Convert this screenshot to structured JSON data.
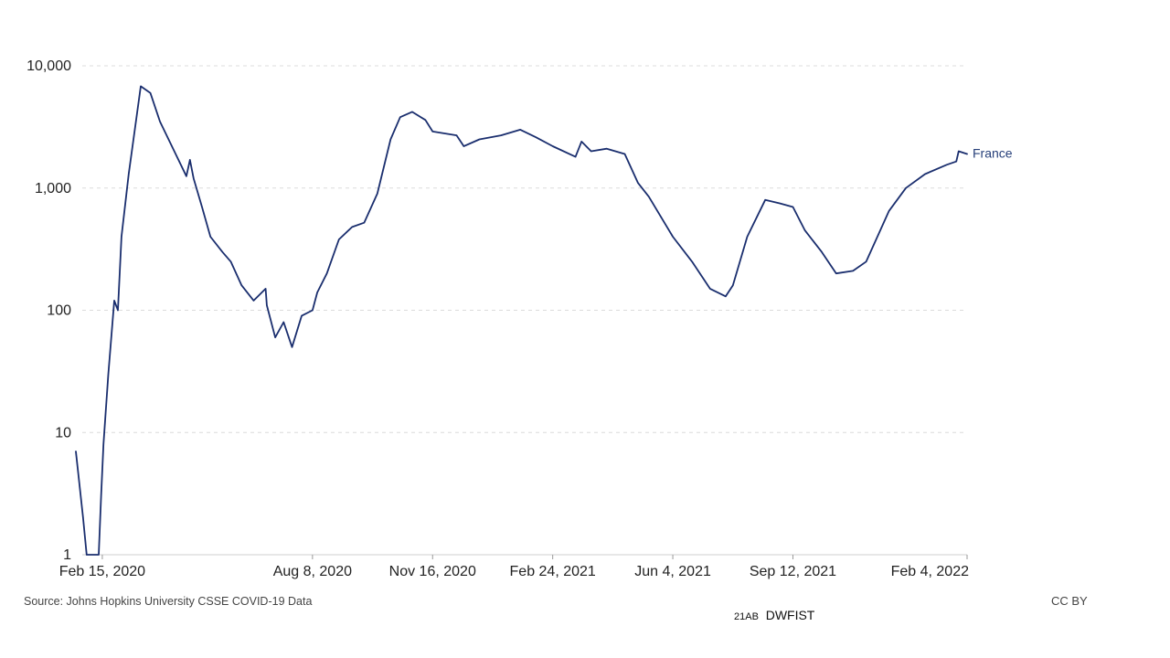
{
  "chart_data": {
    "type": "line",
    "title": "",
    "xlabel": "",
    "ylabel": "",
    "yscale": "log",
    "ylim": [
      1,
      10000
    ],
    "y_ticks": [
      {
        "value": 1,
        "label": "1"
      },
      {
        "value": 10,
        "label": "10"
      },
      {
        "value": 100,
        "label": "100"
      },
      {
        "value": 1000,
        "label": "1,000"
      },
      {
        "value": 10000,
        "label": "10,000"
      }
    ],
    "xlim": [
      "2020-01-24",
      "2022-02-04"
    ],
    "x_ticks": [
      {
        "date": "2020-02-15",
        "label": "Feb 15, 2020"
      },
      {
        "date": "2020-08-08",
        "label": "Aug 8, 2020"
      },
      {
        "date": "2020-11-16",
        "label": "Nov 16, 2020"
      },
      {
        "date": "2021-02-24",
        "label": "Feb 24, 2021"
      },
      {
        "date": "2021-06-04",
        "label": "Jun 4, 2021"
      },
      {
        "date": "2021-09-12",
        "label": "Sep 12, 2021"
      },
      {
        "date": "2022-02-04",
        "label": "Feb 4, 2022"
      }
    ],
    "grid": true,
    "series": [
      {
        "name": "France",
        "color": "#1a2e6e",
        "points": [
          [
            "2020-01-24",
            7
          ],
          [
            "2020-01-30",
            2
          ],
          [
            "2020-02-02",
            1
          ],
          [
            "2020-02-12",
            1
          ],
          [
            "2020-02-14",
            3
          ],
          [
            "2020-02-16",
            8
          ],
          [
            "2020-02-20",
            30
          ],
          [
            "2020-02-25",
            120
          ],
          [
            "2020-02-28",
            100
          ],
          [
            "2020-03-02",
            400
          ],
          [
            "2020-03-08",
            1300
          ],
          [
            "2020-03-14",
            3500
          ],
          [
            "2020-03-18",
            6800
          ],
          [
            "2020-03-26",
            6000
          ],
          [
            "2020-04-03",
            3500
          ],
          [
            "2020-04-15",
            2000
          ],
          [
            "2020-04-25",
            1250
          ],
          [
            "2020-04-28",
            1700
          ],
          [
            "2020-05-01",
            1200
          ],
          [
            "2020-05-08",
            700
          ],
          [
            "2020-05-15",
            400
          ],
          [
            "2020-05-25",
            300
          ],
          [
            "2020-06-01",
            250
          ],
          [
            "2020-06-10",
            160
          ],
          [
            "2020-06-20",
            120
          ],
          [
            "2020-06-30",
            150
          ],
          [
            "2020-07-01",
            110
          ],
          [
            "2020-07-08",
            60
          ],
          [
            "2020-07-15",
            80
          ],
          [
            "2020-07-22",
            50
          ],
          [
            "2020-07-30",
            90
          ],
          [
            "2020-08-08",
            100
          ],
          [
            "2020-08-12",
            140
          ],
          [
            "2020-08-20",
            200
          ],
          [
            "2020-08-30",
            380
          ],
          [
            "2020-09-10",
            480
          ],
          [
            "2020-09-20",
            520
          ],
          [
            "2020-10-01",
            900
          ],
          [
            "2020-10-12",
            2500
          ],
          [
            "2020-10-20",
            3800
          ],
          [
            "2020-10-30",
            4200
          ],
          [
            "2020-11-10",
            3600
          ],
          [
            "2020-11-16",
            2900
          ],
          [
            "2020-12-06",
            2700
          ],
          [
            "2020-12-12",
            2200
          ],
          [
            "2020-12-25",
            2500
          ],
          [
            "2021-01-12",
            2700
          ],
          [
            "2021-01-28",
            3000
          ],
          [
            "2021-02-10",
            2600
          ],
          [
            "2021-02-24",
            2200
          ],
          [
            "2021-03-15",
            1800
          ],
          [
            "2021-03-20",
            2400
          ],
          [
            "2021-03-28",
            2000
          ],
          [
            "2021-04-10",
            2100
          ],
          [
            "2021-04-25",
            1900
          ],
          [
            "2021-05-06",
            1100
          ],
          [
            "2021-05-15",
            850
          ],
          [
            "2021-06-04",
            400
          ],
          [
            "2021-06-20",
            250
          ],
          [
            "2021-07-05",
            150
          ],
          [
            "2021-07-18",
            130
          ],
          [
            "2021-07-24",
            160
          ],
          [
            "2021-08-05",
            400
          ],
          [
            "2021-08-20",
            800
          ],
          [
            "2021-09-01",
            750
          ],
          [
            "2021-09-12",
            700
          ],
          [
            "2021-09-22",
            450
          ],
          [
            "2021-10-06",
            300
          ],
          [
            "2021-10-18",
            200
          ],
          [
            "2021-11-01",
            210
          ],
          [
            "2021-11-12",
            250
          ],
          [
            "2021-12-01",
            650
          ],
          [
            "2021-12-15",
            1000
          ],
          [
            "2021-12-31",
            1300
          ],
          [
            "2022-01-18",
            1550
          ],
          [
            "2022-01-26",
            1650
          ],
          [
            "2022-01-28",
            2000
          ],
          [
            "2022-02-04",
            1900
          ]
        ]
      }
    ],
    "source": "Source: Johns Hopkins University CSSE COVID-19 Data",
    "license": "CC BY"
  },
  "footer_code": {
    "prefix": "21AB",
    "suffix": "DWFIST"
  }
}
